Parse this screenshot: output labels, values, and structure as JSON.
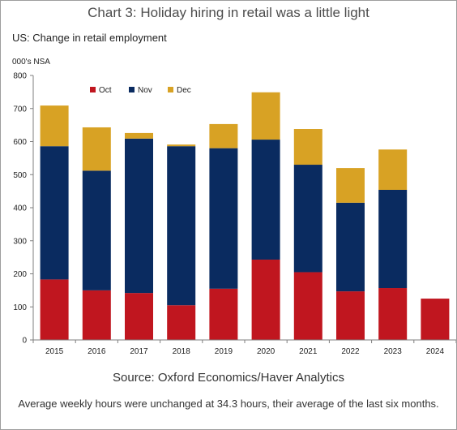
{
  "header": {
    "title": "Chart 3: Holiday hiring in retail was a little light"
  },
  "footer": {
    "source": "Source: Oxford Economics/Haver Analytics",
    "note": "Average weekly hours were unchanged at 34.3 hours, their average of the last six months."
  },
  "chart_data": {
    "type": "bar",
    "stacked": true,
    "subtitle": "US: Change in retail employment",
    "ylabel": "000's NSA",
    "xlabel": "",
    "categories": [
      "2015",
      "2016",
      "2017",
      "2018",
      "2019",
      "2020",
      "2021",
      "2022",
      "2023",
      "2024"
    ],
    "ylim": [
      0,
      800
    ],
    "yticks": [
      0,
      100,
      200,
      300,
      400,
      500,
      600,
      700,
      800
    ],
    "grid": false,
    "legend_position": "top-left",
    "series": [
      {
        "name": "Oct",
        "color": "#c0161f",
        "values": [
          183,
          150,
          142,
          105,
          155,
          243,
          205,
          147,
          157,
          125
        ]
      },
      {
        "name": "Nov",
        "color": "#0a2b60",
        "values": [
          403,
          362,
          467,
          481,
          425,
          363,
          325,
          268,
          297,
          0
        ]
      },
      {
        "name": "Dec",
        "color": "#d8a224",
        "values": [
          123,
          131,
          17,
          5,
          73,
          143,
          108,
          105,
          122,
          0
        ]
      }
    ]
  }
}
